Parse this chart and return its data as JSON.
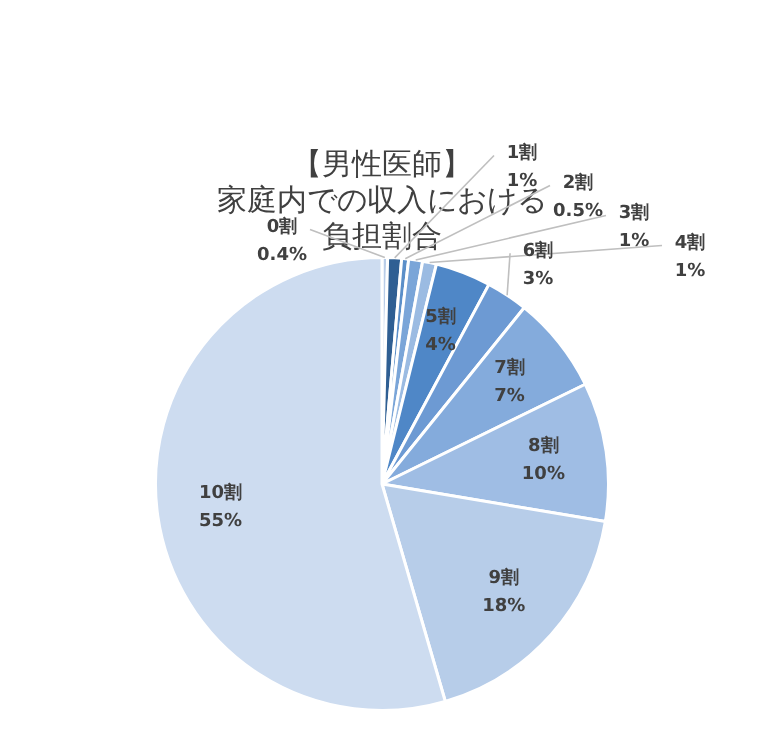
{
  "chart_data": {
    "type": "pie",
    "title": [
      "【男性医師】",
      "家庭内での収入における",
      "負担割合"
    ],
    "categories": [
      "0割",
      "1割",
      "2割",
      "3割",
      "4割",
      "5割",
      "6割",
      "7割",
      "8割",
      "9割",
      "10割"
    ],
    "values": [
      0.4,
      1,
      0.5,
      1,
      1,
      4,
      3,
      7,
      10,
      18,
      55
    ],
    "value_labels": [
      "0.4%",
      "1%",
      "0.5%",
      "1%",
      "1%",
      "4%",
      "3%",
      "7%",
      "10%",
      "18%",
      "55%"
    ],
    "colors": [
      "#b9cde8",
      "#2f5f93",
      "#5b8fc9",
      "#7aa5d8",
      "#9bbbe2",
      "#4f87c7",
      "#6d9ad3",
      "#84abdc",
      "#9fbde4",
      "#b7cde9",
      "#cddcf0"
    ],
    "legend": false
  }
}
